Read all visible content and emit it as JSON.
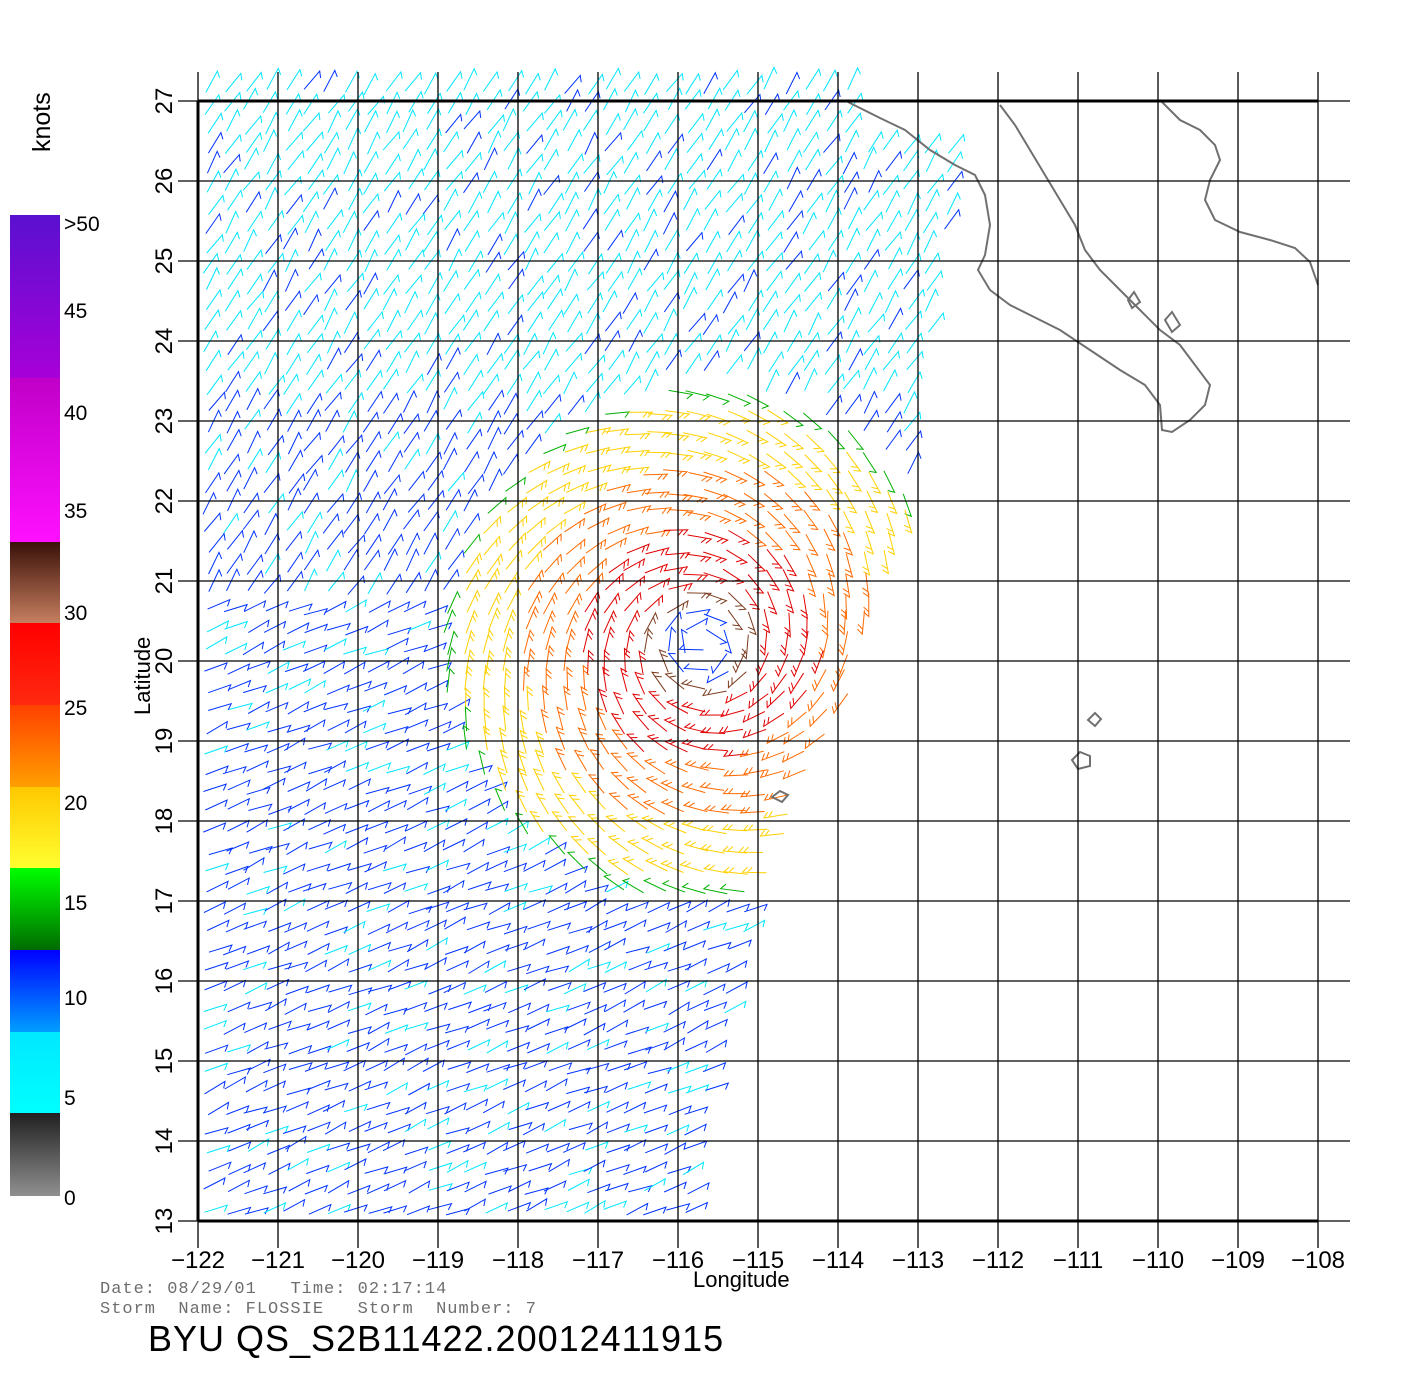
{
  "map": {
    "x_ticks": [
      "−122",
      "−121",
      "−120",
      "−119",
      "−118",
      "−117",
      "−116",
      "−115",
      "−114",
      "−113",
      "−112",
      "−111",
      "−110",
      "−109",
      "−108"
    ],
    "y_ticks": [
      "13",
      "14",
      "15",
      "16",
      "17",
      "18",
      "19",
      "20",
      "21",
      "22",
      "23",
      "24",
      "25",
      "26",
      "27"
    ],
    "xlabel": "Longitude",
    "ylabel": "Latitude",
    "lon_range": [
      -122,
      -108
    ],
    "lat_range": [
      13,
      27
    ],
    "storm_center_lon": -115.7,
    "storm_center_lat": 20.2
  },
  "legend": {
    "unit": "knots",
    "labels": [
      ">50",
      "45",
      "40",
      "35",
      "30",
      "25",
      "20",
      "15",
      "10",
      "5",
      "0"
    ],
    "colors": {
      "calm": "#555555",
      "light": "#00e5ff",
      "moderate": "#0033ff",
      "fresh": "#00b000",
      "strong": "#ffd000",
      "gale": "#ff6a00",
      "storm": "#e00000",
      "violent": "#7a3b1e",
      "hurricane": "#ff00ff"
    }
  },
  "footer": {
    "date_label": "Date:",
    "date_value": "08/29/01",
    "time_label": "Time:",
    "time_value": "02:17:14",
    "storm_name_label": "Storm  Name:",
    "storm_name": "FLOSSIE",
    "storm_number_label": "Storm  Number:",
    "storm_number": "7",
    "product": "BYU  QS_S2B11422.20012411915"
  }
}
